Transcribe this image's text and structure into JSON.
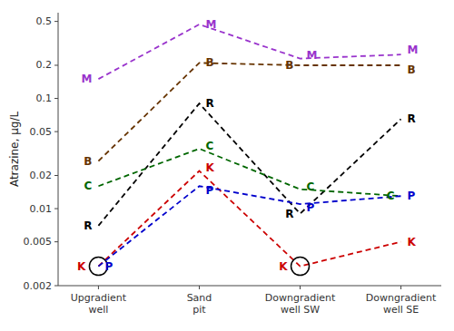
{
  "chart_data": {
    "type": "line",
    "log": "y",
    "grid": false,
    "line_style": "dashed",
    "y_label": "Atrazine, μg/L",
    "categories": [
      "Upgradient\nwell",
      "Sand\npit",
      "Downgradient\nwell SW",
      "Downgradient\nwell SE"
    ],
    "ylim": [
      0.002,
      0.6
    ],
    "yticks": [
      0.002,
      0.005,
      0.01,
      0.02,
      0.05,
      0.1,
      0.2,
      0.5
    ],
    "series": [
      {
        "name": "M",
        "color": "#9933CC",
        "values": [
          0.15,
          0.47,
          0.23,
          0.25
        ]
      },
      {
        "name": "B",
        "color": "#663300",
        "values": [
          0.027,
          0.21,
          0.2,
          0.2
        ]
      },
      {
        "name": "R",
        "color": "#000000",
        "values": [
          0.007,
          0.09,
          0.009,
          0.065
        ]
      },
      {
        "name": "C",
        "color": "#006600",
        "values": [
          0.016,
          0.035,
          0.015,
          0.013
        ]
      },
      {
        "name": "K",
        "color": "#CC0000",
        "values": [
          0.003,
          0.022,
          0.003,
          0.005
        ],
        "circled": [
          0,
          2
        ]
      },
      {
        "name": "P",
        "color": "#0000CC",
        "values": [
          0.003,
          0.016,
          0.011,
          0.013
        ]
      }
    ]
  }
}
